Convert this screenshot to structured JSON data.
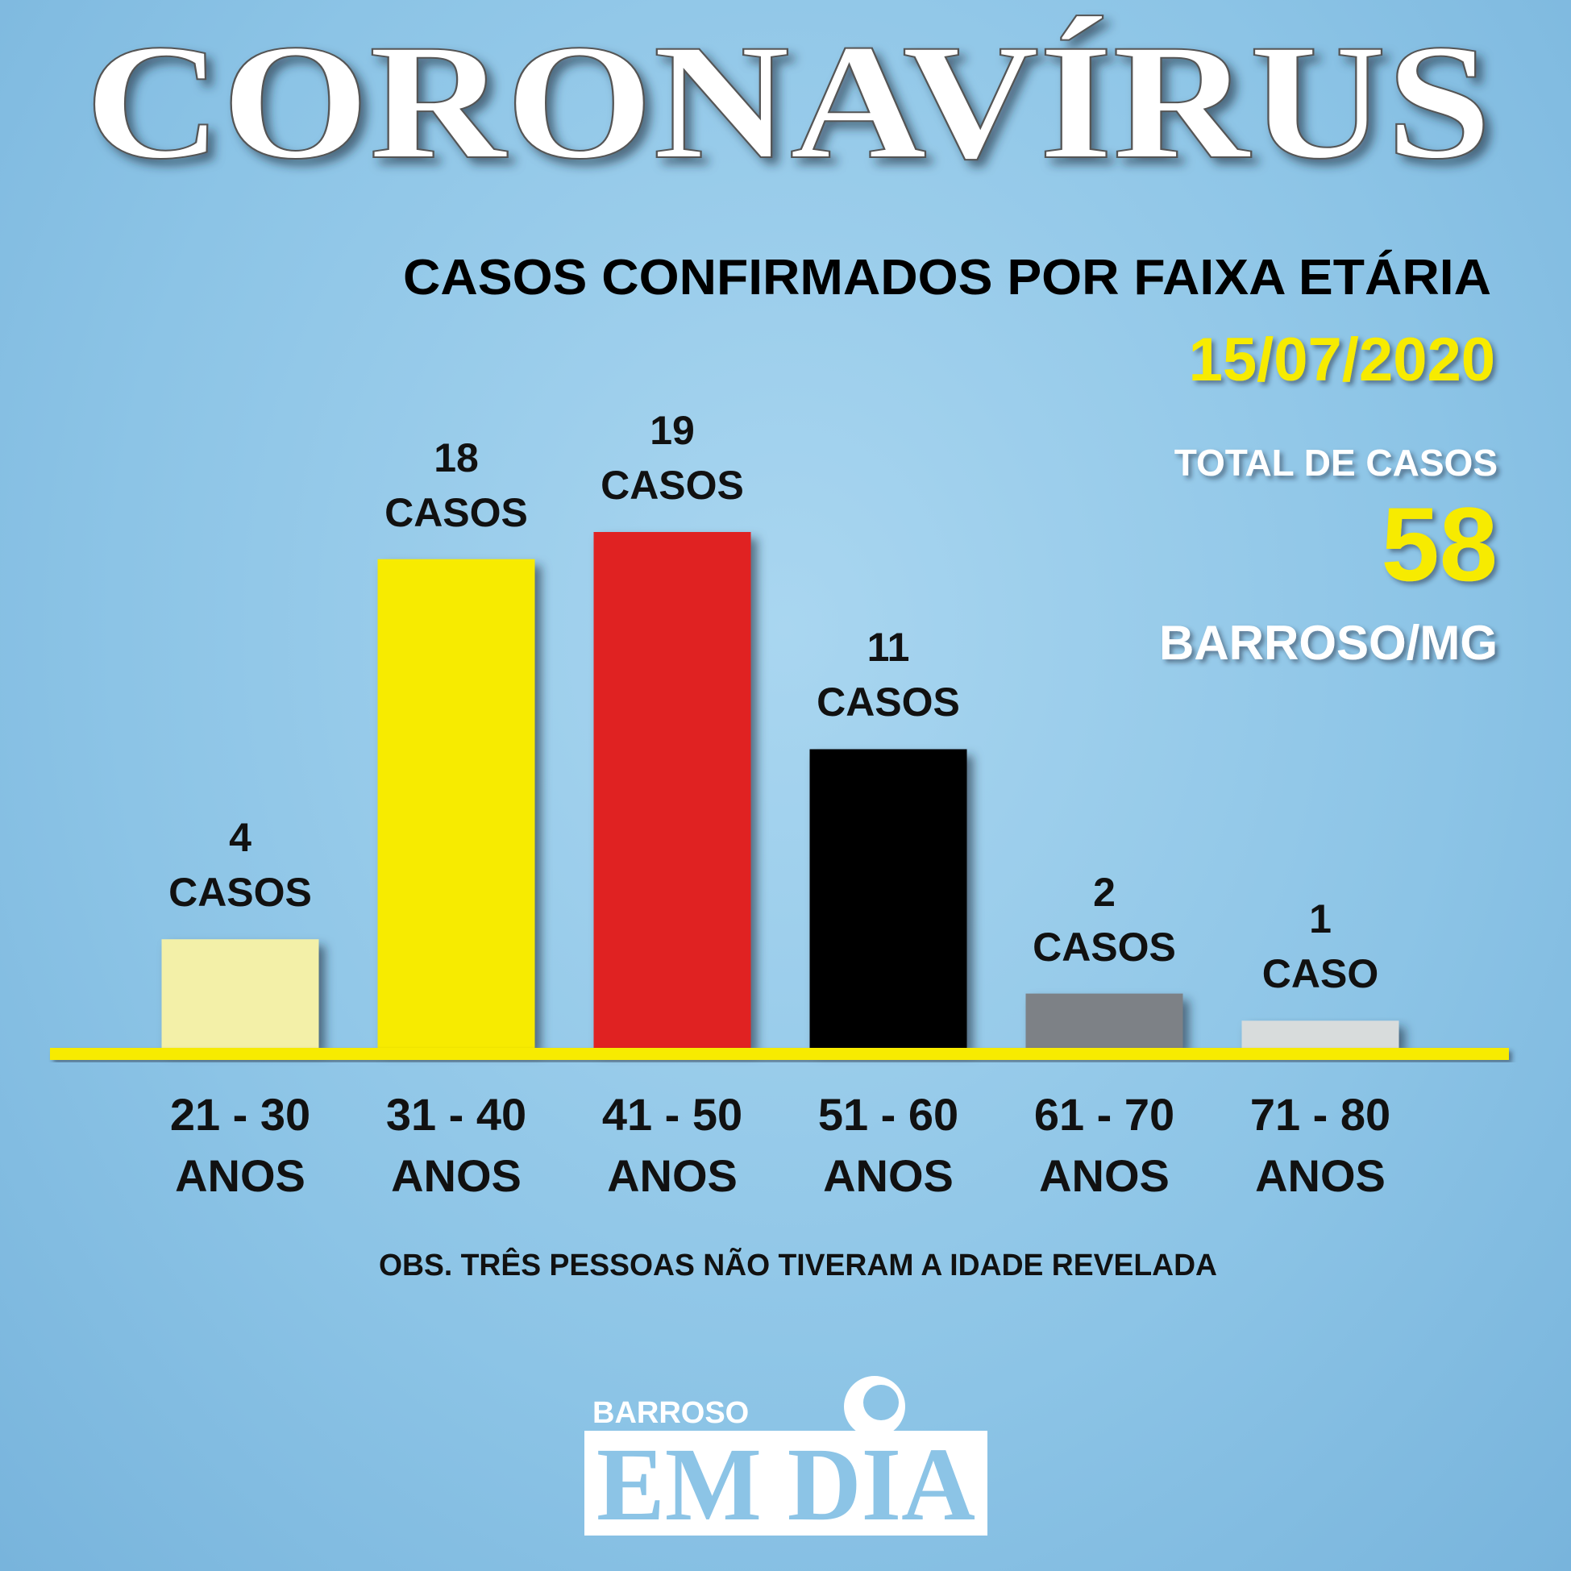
{
  "chart_data": {
    "type": "bar",
    "title": "CORONAVÍRUS",
    "subtitle": "CASOS CONFIRMADOS POR FAIXA ETÁRIA",
    "date": "15/07/2020",
    "total_label": "TOTAL DE CASOS",
    "total": 58,
    "location": "BARROSO/MG",
    "note": "OBS. TRÊS PESSOAS NÃO TIVERAM A IDADE REVELADA",
    "categories": [
      "21 - 30 ANOS",
      "31 - 40 ANOS",
      "41 - 50 ANOS",
      "51 - 60 ANOS",
      "61 - 70 ANOS",
      "71 - 80 ANOS"
    ],
    "values": [
      4,
      18,
      19,
      11,
      2,
      1
    ],
    "value_labels": [
      "4 CASOS",
      "18 CASOS",
      "19 CASOS",
      "11 CASOS",
      "2 CASOS",
      "1 CASO"
    ],
    "colors": [
      "#f3f0a8",
      "#f7eb00",
      "#e02424",
      "#000000",
      "#7d8186",
      "#d8dcdc"
    ],
    "baseline_color": "#f7eb00"
  },
  "logo": {
    "top": "BARROSO",
    "main": "EM DIA"
  }
}
